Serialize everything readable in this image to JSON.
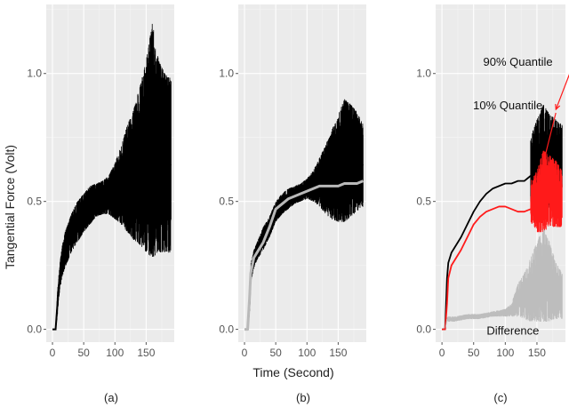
{
  "ylabel": "Tangential Force (Volt)",
  "xlabel": "Time (Second)",
  "colors": {
    "panel_bg": "#ebebeb",
    "grid_major": "#ffffff",
    "grid_minor": "#f5f5f5",
    "signal": "#000000",
    "q10": "#ff1a1a",
    "smooth": "#b9b9b9",
    "difference": "#bdbdbd"
  },
  "chart_data": [
    {
      "type": "line",
      "caption": "(a)",
      "x_ticks": [
        "0",
        "50",
        "100",
        "150"
      ],
      "y_ticks": [
        "0.0",
        "0.5",
        "1.0"
      ],
      "xlim": [
        -10,
        195
      ],
      "ylim": [
        -0.05,
        1.27
      ],
      "grid": true,
      "series": [
        {
          "role": "signal",
          "x": [
            0,
            5,
            8,
            10,
            15,
            20,
            30,
            40,
            50,
            60,
            70,
            80,
            90,
            100,
            110,
            120,
            130,
            140,
            150,
            160,
            170,
            180,
            190
          ],
          "low": [
            0.0,
            0.0,
            0.05,
            0.12,
            0.2,
            0.24,
            0.3,
            0.34,
            0.38,
            0.41,
            0.44,
            0.45,
            0.45,
            0.43,
            0.41,
            0.38,
            0.35,
            0.33,
            0.3,
            0.28,
            0.3,
            0.3,
            0.3
          ],
          "high": [
            0.0,
            0.0,
            0.15,
            0.22,
            0.32,
            0.38,
            0.45,
            0.5,
            0.53,
            0.56,
            0.57,
            0.58,
            0.6,
            0.65,
            0.72,
            0.8,
            0.86,
            0.95,
            1.05,
            1.2,
            1.05,
            1.0,
            0.98
          ]
        }
      ]
    },
    {
      "type": "line",
      "caption": "(b)",
      "x_ticks": [
        "0",
        "50",
        "100",
        "150"
      ],
      "y_ticks": [
        "0.0",
        "0.5",
        "1.0"
      ],
      "xlim": [
        -10,
        195
      ],
      "ylim": [
        -0.05,
        1.27
      ],
      "grid": true,
      "series": [
        {
          "role": "signal",
          "x": [
            0,
            5,
            8,
            10,
            15,
            20,
            30,
            40,
            50,
            60,
            70,
            80,
            90,
            100,
            110,
            120,
            130,
            140,
            150,
            160,
            170,
            180,
            190
          ],
          "low": [
            0.0,
            0.0,
            0.06,
            0.18,
            0.24,
            0.27,
            0.31,
            0.36,
            0.42,
            0.45,
            0.47,
            0.49,
            0.5,
            0.51,
            0.5,
            0.48,
            0.45,
            0.43,
            0.42,
            0.42,
            0.44,
            0.46,
            0.48
          ],
          "high": [
            0.0,
            0.0,
            0.14,
            0.26,
            0.31,
            0.34,
            0.4,
            0.44,
            0.5,
            0.53,
            0.55,
            0.56,
            0.57,
            0.59,
            0.62,
            0.67,
            0.72,
            0.78,
            0.84,
            0.9,
            0.88,
            0.85,
            0.8
          ]
        },
        {
          "role": "smooth",
          "x": [
            0,
            5,
            8,
            10,
            15,
            20,
            30,
            40,
            50,
            60,
            70,
            80,
            90,
            100,
            110,
            120,
            130,
            140,
            150,
            160,
            170,
            180,
            190
          ],
          "y": [
            0.0,
            0.0,
            0.12,
            0.22,
            0.28,
            0.3,
            0.34,
            0.4,
            0.47,
            0.49,
            0.51,
            0.52,
            0.53,
            0.54,
            0.55,
            0.56,
            0.56,
            0.56,
            0.56,
            0.57,
            0.57,
            0.57,
            0.58
          ]
        }
      ]
    },
    {
      "type": "line",
      "caption": "(c)",
      "x_ticks": [
        "0",
        "50",
        "100",
        "150"
      ],
      "y_ticks": [
        "0.0",
        "0.5",
        "1.0"
      ],
      "xlim": [
        -10,
        195
      ],
      "ylim": [
        -0.05,
        1.27
      ],
      "grid": true,
      "annotations": [
        {
          "text": "90% Quantile",
          "x": 120,
          "y": 1.03,
          "arrow_to": [
            180,
            0.86
          ]
        },
        {
          "text": "10% Quantile",
          "x": 104,
          "y": 0.86,
          "arrow_to": [
            152,
            0.57
          ]
        },
        {
          "text": "Difference",
          "x": 112,
          "y": -0.02
        }
      ],
      "series": [
        {
          "role": "q90_band",
          "x": [
            140,
            150,
            160,
            170,
            180,
            190
          ],
          "low": [
            0.48,
            0.45,
            0.45,
            0.48,
            0.5,
            0.5
          ],
          "high": [
            0.75,
            0.82,
            0.88,
            0.84,
            0.82,
            0.8
          ]
        },
        {
          "role": "q10_band",
          "x": [
            140,
            150,
            160,
            170,
            180,
            190
          ],
          "low": [
            0.42,
            0.38,
            0.38,
            0.4,
            0.4,
            0.4
          ],
          "high": [
            0.58,
            0.62,
            0.7,
            0.68,
            0.66,
            0.62
          ]
        },
        {
          "role": "q90",
          "x": [
            0,
            5,
            8,
            10,
            15,
            20,
            30,
            40,
            50,
            60,
            70,
            80,
            90,
            100,
            110,
            120,
            130,
            140
          ],
          "y": [
            0.0,
            0.0,
            0.2,
            0.26,
            0.3,
            0.32,
            0.36,
            0.41,
            0.46,
            0.5,
            0.53,
            0.55,
            0.56,
            0.57,
            0.57,
            0.58,
            0.58,
            0.6
          ]
        },
        {
          "role": "q10",
          "x": [
            0,
            5,
            8,
            10,
            15,
            20,
            30,
            40,
            50,
            60,
            70,
            80,
            90,
            100,
            110,
            120,
            130,
            140
          ],
          "y": [
            0.0,
            0.0,
            0.1,
            0.2,
            0.25,
            0.27,
            0.31,
            0.36,
            0.41,
            0.44,
            0.46,
            0.47,
            0.48,
            0.48,
            0.47,
            0.46,
            0.46,
            0.47
          ]
        },
        {
          "role": "difference_band",
          "x": [
            0,
            5,
            8,
            10,
            20,
            40,
            60,
            80,
            100,
            110,
            120,
            130,
            140,
            150,
            160,
            170,
            180,
            190
          ],
          "low": [
            0.0,
            0.0,
            0.03,
            0.03,
            0.03,
            0.04,
            0.04,
            0.05,
            0.05,
            0.05,
            0.05,
            0.04,
            0.03,
            0.03,
            0.03,
            0.03,
            0.04,
            0.04
          ],
          "high": [
            0.0,
            0.0,
            0.05,
            0.05,
            0.05,
            0.06,
            0.06,
            0.07,
            0.08,
            0.1,
            0.18,
            0.22,
            0.28,
            0.34,
            0.4,
            0.34,
            0.26,
            0.22
          ]
        }
      ]
    }
  ]
}
